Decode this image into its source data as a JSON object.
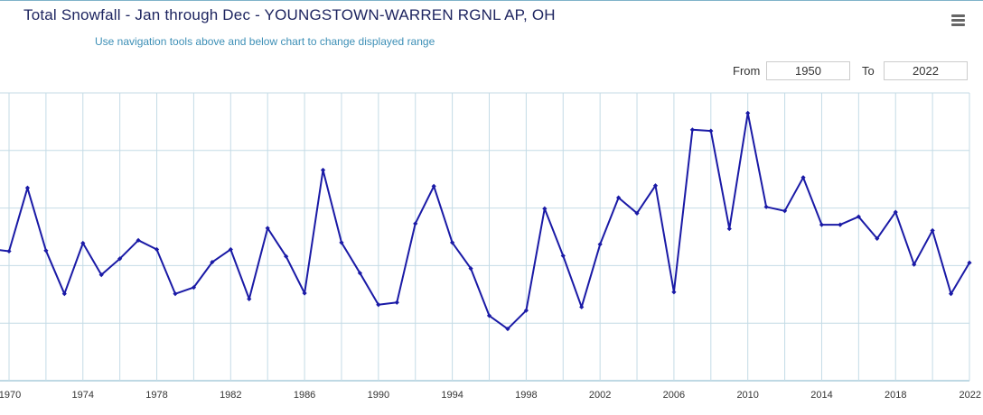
{
  "title": "Total Snowfall - Jan through Dec - YOUNGSTOWN-WARREN RGNL AP, OH",
  "subtitle": "Use navigation tools above and below chart to change displayed range",
  "range": {
    "from_label": "From",
    "from_value": "1950",
    "to_label": "To",
    "to_value": "2022"
  },
  "menu_icon": "hamburger-menu-icon",
  "colors": {
    "line": "#1a1aa6",
    "grid": "#c4dbe6",
    "axis_line": "#7fb3c9"
  },
  "chart_data": {
    "type": "line",
    "title": "Total Snowfall - Jan through Dec - YOUNGSTOWN-WARREN RGNL AP, OH",
    "xlabel": "",
    "ylabel": "",
    "xlim": [
      1969.5,
      2022
    ],
    "ylim": [
      0,
      5
    ],
    "y_axis_note": "y tick labels not visible in the screenshot; values given in gridline units (0 = bottom axis, 5 = top gridline)",
    "x_ticks": [
      "1970",
      "1974",
      "1978",
      "1982",
      "1986",
      "1990",
      "1994",
      "1998",
      "2002",
      "2006",
      "2010",
      "2014",
      "2018",
      "2022"
    ],
    "grid": true,
    "legend": "none",
    "series": [
      {
        "x": [
          1969.5,
          1970,
          1971,
          1972,
          1973,
          1974,
          1975,
          1976,
          1977,
          1978,
          1979,
          1980,
          1981,
          1982,
          1983,
          1984,
          1985,
          1986,
          1987,
          1988,
          1989,
          1990,
          1991,
          1992,
          1993,
          1994,
          1995,
          1996,
          1997,
          1998,
          1999,
          2000,
          2001,
          2002,
          2003,
          2004,
          2005,
          2006,
          2007,
          2008,
          2009,
          2010,
          2011,
          2012,
          2013,
          2014,
          2015,
          2016,
          2017,
          2018,
          2019,
          2020,
          2021,
          2022
        ],
        "values": [
          2.27,
          2.25,
          3.35,
          2.26,
          1.51,
          2.39,
          1.84,
          2.12,
          2.44,
          2.28,
          1.51,
          1.62,
          2.06,
          2.28,
          1.42,
          2.65,
          2.16,
          1.52,
          3.66,
          2.4,
          1.87,
          1.32,
          1.36,
          2.73,
          3.38,
          2.4,
          1.95,
          1.13,
          0.9,
          1.22,
          2.99,
          2.17,
          1.28,
          2.37,
          3.18,
          2.91,
          3.39,
          1.54,
          4.36,
          4.34,
          2.64,
          4.65,
          3.02,
          2.95,
          3.53,
          2.71,
          2.71,
          2.85,
          2.47,
          2.93,
          2.02,
          2.61,
          1.51,
          2.05
        ]
      }
    ]
  }
}
